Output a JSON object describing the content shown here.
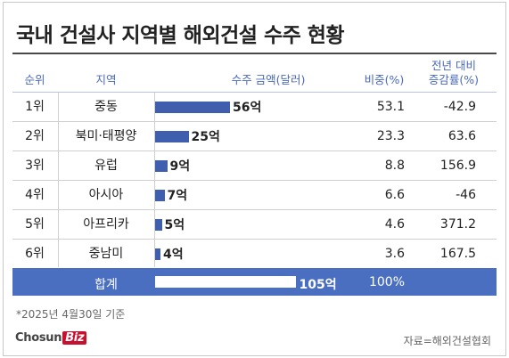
{
  "title": "국내 건설사 지역별 해외건설 수주 현황",
  "headers": {
    "rank": "순위",
    "region": "지역",
    "amount": "수주 금액(달러)",
    "share": "비중(%)",
    "change_line1": "전년 대비",
    "change_line2": "증감률(%)"
  },
  "rows": [
    {
      "rank": "1위",
      "region": "중동",
      "amount_label": "56억",
      "share": "53.1",
      "change": "-42.9"
    },
    {
      "rank": "2위",
      "region": "북미·태평양",
      "amount_label": "25억",
      "share": "23.3",
      "change": "63.6"
    },
    {
      "rank": "3위",
      "region": "유럽",
      "amount_label": "9억",
      "share": "8.8",
      "change": "156.9"
    },
    {
      "rank": "4위",
      "region": "아시아",
      "amount_label": "7억",
      "share": "6.6",
      "change": "-46"
    },
    {
      "rank": "5위",
      "region": "아프리카",
      "amount_label": "5억",
      "share": "4.6",
      "change": "371.2"
    },
    {
      "rank": "6위",
      "region": "중남미",
      "amount_label": "4억",
      "share": "3.6",
      "change": "167.5"
    }
  ],
  "total": {
    "label": "합계",
    "amount_label": "105억",
    "share": "100%"
  },
  "footnote": "*2025년 4월30일 기준",
  "logo": {
    "text": "Chosun",
    "badge": "Biz"
  },
  "source": "자료=해외건설협회",
  "colors": {
    "bar": "#3f5fae",
    "header_text": "#4a69b8",
    "total_band": "#4a6fc0"
  },
  "chart_data": {
    "type": "bar",
    "orientation": "horizontal",
    "categories": [
      "중동",
      "북미·태평양",
      "유럽",
      "아시아",
      "아프리카",
      "중남미"
    ],
    "values": [
      56,
      25,
      9,
      7,
      5,
      4
    ],
    "total": 105,
    "title": "국내 건설사 지역별 해외건설 수주 현황",
    "xlabel": "수주 금액(달러)",
    "ylabel": "지역",
    "share_pct": [
      53.1,
      23.3,
      8.8,
      6.6,
      4.6,
      3.6
    ],
    "yoy_change_pct": [
      -42.9,
      63.6,
      156.9,
      -46,
      371.2,
      167.5
    ],
    "grid": false
  }
}
